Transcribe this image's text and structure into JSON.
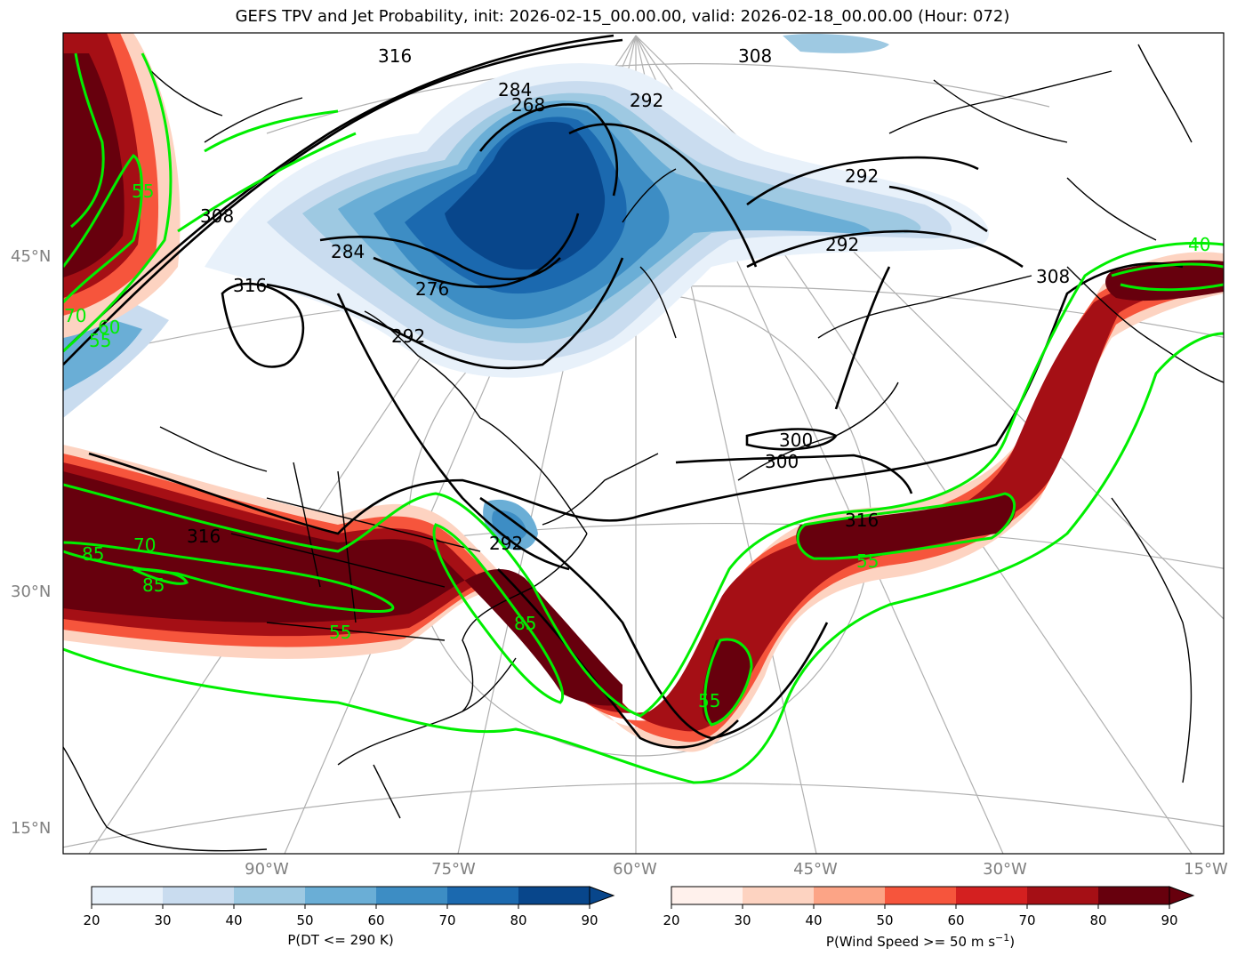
{
  "title": "GEFS TPV and Jet Probability, init: 2026-02-15_00.00.00, valid: 2026-02-18_00.00.00 (Hour: 072)",
  "lat_labels": [
    "45°N",
    "30°N",
    "15°N"
  ],
  "lon_labels": [
    "90°W",
    "75°W",
    "60°W",
    "45°W",
    "30°W",
    "15°W"
  ],
  "theta_contour_labels": [
    "284",
    "276",
    "292",
    "268",
    "284",
    "292",
    "292",
    "292",
    "308",
    "316",
    "308",
    "300",
    "300",
    "316",
    "316",
    "292",
    "308",
    "316"
  ],
  "jet_contour_labels": [
    "55",
    "70",
    "60",
    "70",
    "85",
    "85",
    "55",
    "85",
    "55",
    "55",
    "55",
    "40"
  ],
  "colorbar_blue": {
    "label": "P(DT <= 290 K)",
    "ticks": [
      "20",
      "30",
      "40",
      "50",
      "60",
      "70",
      "80",
      "90"
    ],
    "colors": [
      "#e8f1fa",
      "#c9dcef",
      "#9ec9e2",
      "#6aaed6",
      "#3d8dc4",
      "#1b69af",
      "#08468b"
    ]
  },
  "colorbar_red": {
    "label_main": "P(Wind Speed >= 50 m s",
    "label_sup": "−1",
    "label_end": ")",
    "ticks": [
      "20",
      "30",
      "40",
      "50",
      "60",
      "70",
      "80",
      "90"
    ],
    "colors": [
      "#fff1ec",
      "#fdd3c1",
      "#fca486",
      "#f6553c",
      "#d42020",
      "#a50f15",
      "#67000d"
    ]
  }
}
